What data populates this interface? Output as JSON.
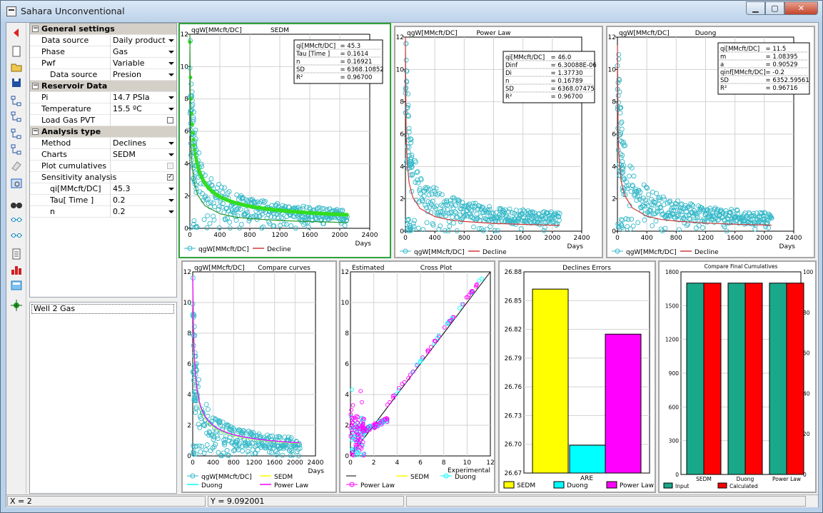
{
  "window": {
    "title": "Sahara Unconventional"
  },
  "icons": [
    "back-icon",
    "new-file-icon",
    "open-folder-icon",
    "save-icon",
    "tree-add-icon",
    "tree-link-icon",
    "tree-move-icon",
    "tree-export-icon",
    "eraser-icon",
    "zoom-icon",
    "binoculars-icon",
    "crossplot-icon",
    "crossplot-alt-icon",
    "report-icon",
    "bar-chart-icon",
    "calculator-icon",
    "star-icon"
  ],
  "properties": {
    "general_header": "General settings",
    "data_source_label": "Data source",
    "data_source_value": "Daily product…",
    "phase_label": "Phase",
    "phase_value": "Gas",
    "pwf_label": "Pwf",
    "pwf_value": "Variable",
    "pwf_data_source_label": "Data source",
    "pwf_data_source_value": "Presion",
    "reservoir_header": "Reservoir Data",
    "pi_label": "Pi",
    "pi_value": "14.7 PSIa",
    "temperature_label": "Temperature",
    "temperature_value": "15.5 ºC",
    "load_gas_label": "Load Gas PVT",
    "analysis_header": "Analysis type",
    "method_label": "Method",
    "method_value": "Declines",
    "charts_label": "Charts",
    "charts_value": "SEDM",
    "plot_cumulatives_label": "Plot cumulatives",
    "sensitivity_label": "Sensitivity analysis",
    "qi_label": "qi[MMcft/DC]",
    "qi_value": "45.3",
    "tau_label": "Tau[ Time ]",
    "tau_value": "0.2",
    "n_label": "n",
    "n_value": "0.2"
  },
  "wells": [
    "Well 2 Gas"
  ],
  "status": {
    "x": "X = 2",
    "y": "Y = 9.092001"
  },
  "colors": {
    "obs": "#33b8c8",
    "decline": "#d03a3a",
    "sedm_fit": "#33dd22",
    "magenta": "#ff00ff",
    "yellow": "#ffff00",
    "cyan": "#00ffff",
    "teal": "#1aa88a",
    "red": "#ff0000"
  },
  "labels": {
    "y_axis": "qgW[MMcft/DC]",
    "days": "Days",
    "legend_obs": "qgW[MMcft/DC]",
    "legend_decline": "Decline",
    "sedm": "SEDM",
    "power_law": "Power Law",
    "duong": "Duong",
    "compare": "Compare curves",
    "estimated": "Estimated",
    "cross": "Cross Plot",
    "experimental": "Experimental",
    "errors": "Declines Errors",
    "are": "ARE",
    "final": "Compare Final Cumulatives",
    "input": "Input",
    "calculated": "Calculated"
  },
  "stats": {
    "sedm": [
      [
        "qi[MMcft/DC]",
        "= 45.3"
      ],
      [
        "Tau [Time ]",
        "= 0.1614"
      ],
      [
        "n",
        "= 0.16921"
      ],
      [
        "SD",
        "= 6368.10852"
      ],
      [
        "R²",
        "= 0.96700"
      ]
    ],
    "power": [
      [
        "qi[MMcft/DC]",
        "= 46.0"
      ],
      [
        "Dinf",
        "= 6.30088E-06"
      ],
      [
        "Di",
        "= 1.37730"
      ],
      [
        "n",
        "= 0.16789"
      ],
      [
        "SD",
        "= 6368.07475"
      ],
      [
        "R²",
        "= 0.96700"
      ]
    ],
    "duong": [
      [
        "qi[MMcft/DC]",
        "= 11.5"
      ],
      [
        "m",
        "= 1.08395"
      ],
      [
        "a",
        "= 0.90529"
      ],
      [
        "qinf[MMcft/DC]",
        "= -0.2"
      ],
      [
        "SD",
        "= 6352.59561"
      ],
      [
        "R²",
        "= 0.96716"
      ]
    ]
  },
  "chart_data": [
    {
      "type": "scatter",
      "title": "SEDM",
      "ylabel": "qgW[MMcft/DC]",
      "xlabel": "Days",
      "xlim": [
        0,
        2400
      ],
      "ylim": [
        0,
        12
      ],
      "xticks": [
        0,
        400,
        800,
        1200,
        1600,
        2000,
        2400
      ],
      "yticks": [
        0,
        2,
        4,
        6,
        8,
        10,
        12
      ],
      "series": [
        {
          "name": "qgW[MMcft/DC]",
          "model": "observed production",
          "x": [
            0,
            5,
            10,
            20,
            40,
            60,
            100,
            150,
            200,
            300,
            400,
            500,
            600,
            800,
            1000,
            1200,
            1400,
            1600,
            1800,
            2000,
            2100
          ],
          "y": [
            10.8,
            7.0,
            5.5,
            4.0,
            2.7,
            2.1,
            1.6,
            1.2,
            1.0,
            0.8,
            0.7,
            0.65,
            0.6,
            0.55,
            0.5,
            0.45,
            0.42,
            0.4,
            0.38,
            0.36,
            0.35
          ]
        },
        {
          "name": "Decline",
          "x": [
            0,
            10,
            25,
            50,
            100,
            200,
            400,
            600,
            800,
            1200,
            1600,
            2000,
            2100
          ],
          "y": [
            12.0,
            5.8,
            4.2,
            3.0,
            2.1,
            1.4,
            0.9,
            0.7,
            0.6,
            0.48,
            0.42,
            0.37,
            0.36
          ]
        }
      ]
    },
    {
      "type": "scatter",
      "title": "Power Law",
      "ylabel": "qgW[MMcft/DC]",
      "xlabel": "Days",
      "xlim": [
        0,
        2400
      ],
      "ylim": [
        0,
        12
      ],
      "series": [
        {
          "name": "qgW[MMcft/DC]"
        },
        {
          "name": "Decline",
          "x": [
            0,
            10,
            25,
            50,
            100,
            200,
            400,
            600,
            800,
            1200,
            1600,
            2000,
            2100
          ],
          "y": [
            12.0,
            5.8,
            4.2,
            3.0,
            2.1,
            1.4,
            0.9,
            0.7,
            0.6,
            0.48,
            0.42,
            0.37,
            0.36
          ]
        }
      ]
    },
    {
      "type": "scatter",
      "title": "Duong",
      "ylabel": "qgW[MMcft/DC]",
      "xlabel": "Days",
      "xlim": [
        0,
        2400
      ],
      "ylim": [
        0,
        12
      ],
      "series": [
        {
          "name": "qgW[MMcft/DC]"
        },
        {
          "name": "Decline",
          "x": [
            0,
            10,
            25,
            50,
            100,
            200,
            400,
            600,
            800,
            1200,
            1600,
            2000,
            2100
          ],
          "y": [
            11.5,
            5.9,
            4.3,
            3.1,
            2.2,
            1.45,
            0.92,
            0.72,
            0.62,
            0.5,
            0.43,
            0.38,
            0.37
          ]
        }
      ]
    },
    {
      "type": "line",
      "title": "Compare curves",
      "ylabel": "qgW[MMcft/DC]",
      "xlabel": "Days",
      "xlim": [
        0,
        2400
      ],
      "ylim": [
        0,
        12
      ],
      "series": [
        {
          "name": "qgW[MMcft/DC]"
        },
        {
          "name": "SEDM"
        },
        {
          "name": "Duong"
        },
        {
          "name": "Power Law"
        }
      ]
    },
    {
      "type": "scatter",
      "title": "Cross Plot",
      "ylabel": "Estimated",
      "xlabel": "Experimental",
      "xlim": [
        0,
        12
      ],
      "ylim": [
        0,
        12
      ],
      "series": [
        {
          "name": "SEDM"
        },
        {
          "name": "Duong"
        },
        {
          "name": "Power Law"
        }
      ]
    },
    {
      "type": "bar",
      "title": "Declines Errors",
      "categories": [
        "ARE"
      ],
      "ylim": [
        26.67,
        26.88
      ],
      "yticks": [
        26.67,
        26.7,
        26.73,
        26.76,
        26.79,
        26.82,
        26.85,
        26.88
      ],
      "series": [
        {
          "name": "SEDM",
          "values": [
            26.862
          ]
        },
        {
          "name": "Duong",
          "values": [
            26.699
          ]
        },
        {
          "name": "Power Law",
          "values": [
            26.815
          ]
        }
      ]
    },
    {
      "type": "bar",
      "title": "Compare Final Cumulatives",
      "categories": [
        "SEDM",
        "Duong",
        "Power Law"
      ],
      "ylim": [
        0,
        1800
      ],
      "yticks": [
        0,
        300,
        600,
        900,
        1200,
        1500,
        1800
      ],
      "y2ticks": [
        0,
        20,
        40,
        60,
        80,
        100
      ],
      "series": [
        {
          "name": "Input",
          "values": [
            1700,
            1700,
            1700
          ]
        },
        {
          "name": "Calculated",
          "values": [
            1700,
            1700,
            1700
          ]
        }
      ]
    }
  ]
}
